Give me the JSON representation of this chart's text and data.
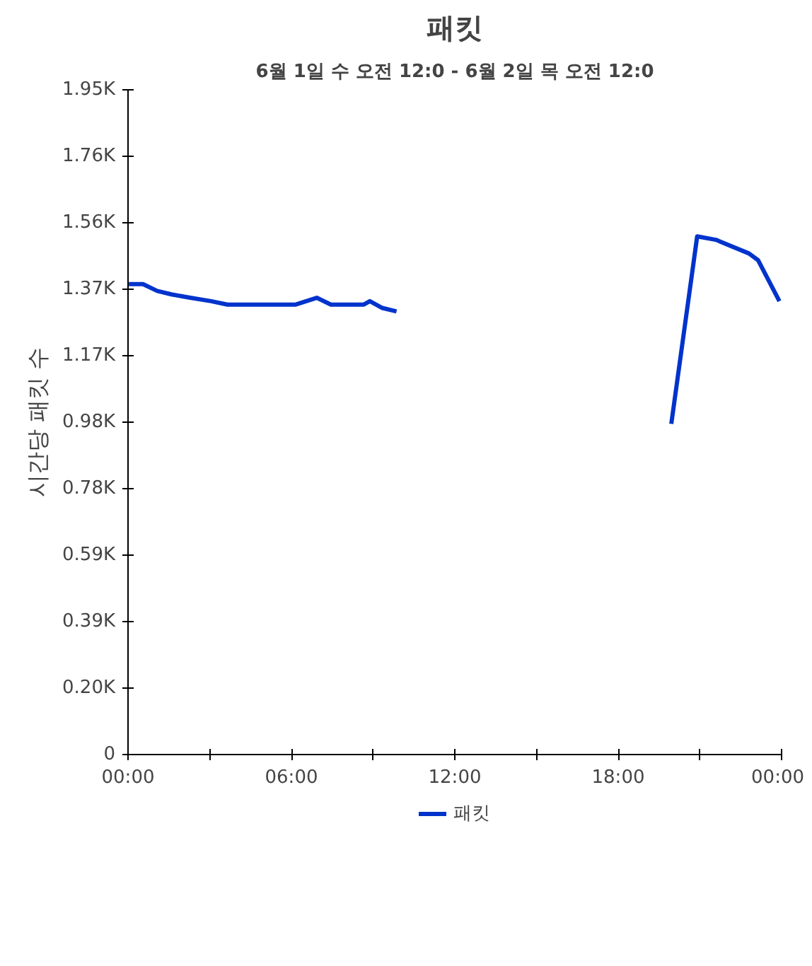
{
  "chart_data": {
    "type": "line",
    "title": "패킷",
    "subtitle": "6월 1일 수 오전 12:0 - 6월 2일 목 오전 12:0",
    "ylabel": "시간당 패킷 수",
    "x": [
      0.03,
      0.55,
      1.07,
      1.59,
      2.28,
      3.05,
      3.65,
      6.16,
      6.93,
      7.45,
      8.66,
      8.88,
      9.34,
      9.86,
      15,
      19.95,
      20.9,
      21.59,
      22.8,
      23.14,
      23.92
    ],
    "series": [
      {
        "name": "패킷",
        "color": "#0033cc",
        "values": [
          1380,
          1380,
          1360,
          1350,
          1340,
          1330,
          1320,
          1320,
          1340,
          1320,
          1320,
          1330,
          1310,
          1300,
          null,
          970,
          1520,
          1510,
          1470,
          1450,
          1330
        ]
      }
    ],
    "xlim": [
      0,
      24
    ],
    "xticks": [
      {
        "value": 0,
        "label": "00:00"
      },
      {
        "value": 3,
        "label": null
      },
      {
        "value": 6,
        "label": "06:00"
      },
      {
        "value": 9,
        "label": null
      },
      {
        "value": 12,
        "label": "12:00"
      },
      {
        "value": 15,
        "label": null
      },
      {
        "value": 18,
        "label": "18:00"
      },
      {
        "value": 21,
        "label": null
      },
      {
        "value": 24,
        "label": "00:00"
      }
    ],
    "ylim": [
      0,
      1950
    ],
    "yticks": [
      0,
      {
        "value": 195,
        "label": "0.20K"
      },
      {
        "value": 390,
        "label": "0.39K"
      },
      {
        "value": 585,
        "label": "0.59K"
      },
      {
        "value": 780,
        "label": "0.78K"
      },
      {
        "value": 975,
        "label": "0.98K"
      },
      {
        "value": 1170,
        "label": "1.17K"
      },
      {
        "value": 1365,
        "label": "1.37K"
      },
      {
        "value": 1560,
        "label": "1.56K"
      },
      {
        "value": 1755,
        "label": "1.76K"
      },
      {
        "value": 1950,
        "label": "1.95K"
      }
    ],
    "grid": false,
    "legend": "bottom",
    "marker": "none",
    "line_style": "solid"
  }
}
